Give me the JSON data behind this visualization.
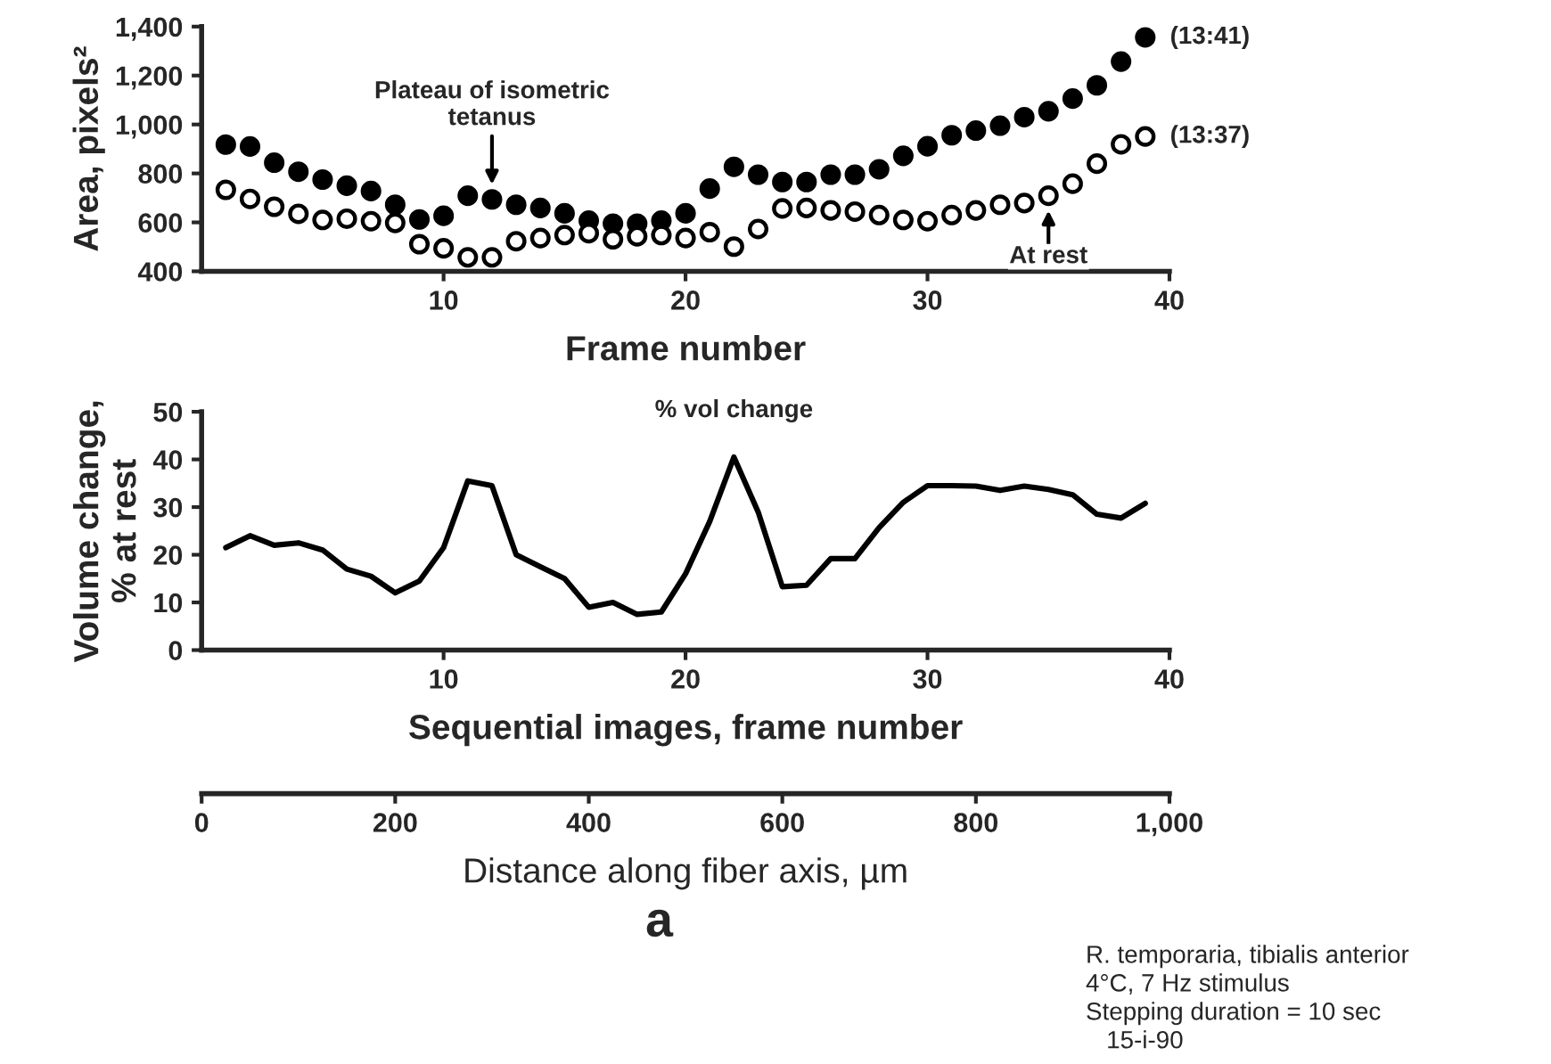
{
  "chart_data": [
    {
      "type": "scatter",
      "ylabel": "Area, pixels²",
      "xlabel": "Frame number",
      "xlim": [
        0,
        40
      ],
      "xticks": [
        10,
        20,
        30,
        40
      ],
      "ylim": [
        400,
        1400
      ],
      "yticks": [
        {
          "value": 400,
          "label": "400"
        },
        {
          "value": 600,
          "label": "600"
        },
        {
          "value": 800,
          "label": "800"
        },
        {
          "value": 1000,
          "label": "1,000"
        },
        {
          "value": 1200,
          "label": "1,200"
        },
        {
          "value": 1400,
          "label": "1,400"
        }
      ],
      "marker": "circle",
      "grid": false,
      "legend": false,
      "x": [
        1,
        2,
        3,
        4,
        5,
        6,
        7,
        8,
        9,
        10,
        11,
        12,
        13,
        14,
        15,
        16,
        17,
        18,
        19,
        20,
        21,
        22,
        23,
        24,
        25,
        26,
        27,
        28,
        29,
        30,
        31,
        32,
        33,
        34,
        35,
        36,
        37,
        38,
        39
      ],
      "series": [
        {
          "name": "(13:41)",
          "color": "#000000",
          "values": [
            918,
            910,
            844,
            807,
            775,
            750,
            728,
            672,
            612,
            627,
            709,
            694,
            672,
            659,
            637,
            607,
            595,
            595,
            607,
            637,
            738,
            827,
            795,
            765,
            765,
            795,
            795,
            817,
            872,
            911,
            956,
            975,
            995,
            1030,
            1054,
            1106,
            1160,
            1257,
            1356
          ]
        },
        {
          "name": "(13:37)",
          "color": "#000000",
          "values": [
            733,
            696,
            664,
            635,
            610,
            615,
            605,
            598,
            511,
            494,
            457,
            457,
            523,
            536,
            548,
            556,
            531,
            543,
            548,
            536,
            560,
            501,
            573,
            657,
            659,
            649,
            644,
            630,
            610,
            605,
            630,
            649,
            672,
            679,
            709,
            758,
            840,
            919,
            951
          ]
        }
      ],
      "annotations": [
        {
          "text": "Plateau of isometric\ntetanus",
          "x": 12,
          "y": 694
        },
        {
          "text": "At rest",
          "x": 35,
          "y": 709
        }
      ]
    },
    {
      "type": "line",
      "ylabel": "Volume change,\n% at rest",
      "xlabel": "Sequential images, frame number",
      "xlim": [
        0,
        40
      ],
      "xticks": [
        10,
        20,
        30,
        40
      ],
      "ylim": [
        0,
        50
      ],
      "yticks": [
        0,
        10,
        20,
        30,
        40,
        50
      ],
      "x2lim": [
        0,
        1000
      ],
      "x2ticks": [
        0,
        200,
        400,
        600,
        {
          "value": 800,
          "label": "800"
        },
        {
          "value": 1000,
          "label": "1,000"
        }
      ],
      "x2label": "Distance along fiber axis, µm",
      "grid": false,
      "legend": false,
      "x": [
        1,
        2,
        3,
        4,
        5,
        6,
        7,
        8,
        9,
        10,
        11,
        12,
        13,
        14,
        15,
        16,
        17,
        18,
        19,
        20,
        21,
        22,
        23,
        24,
        25,
        26,
        27,
        28,
        29,
        30,
        31,
        32,
        33,
        34,
        35,
        36,
        37,
        38,
        39
      ],
      "series": [
        {
          "name": "% vol change",
          "color": "#000000",
          "values": [
            21.5,
            24,
            22,
            22.5,
            21,
            17,
            15.5,
            12,
            14.5,
            21.5,
            35.5,
            34.5,
            20,
            17.5,
            15,
            9,
            10,
            7.5,
            8,
            16,
            27,
            40.5,
            29,
            13.3,
            13.6,
            19.2,
            19.2,
            25.7,
            31,
            34.5,
            34.5,
            34.4,
            33.5,
            34.4,
            33.7,
            32.6,
            28.5,
            27.7,
            30.8
          ]
        }
      ],
      "annotations": [
        "a",
        "R. temporaria, tibialis anterior\n4°C, 7 Hz stimulus\nStepping duration = 10 sec\n   15-i-90"
      ]
    }
  ]
}
